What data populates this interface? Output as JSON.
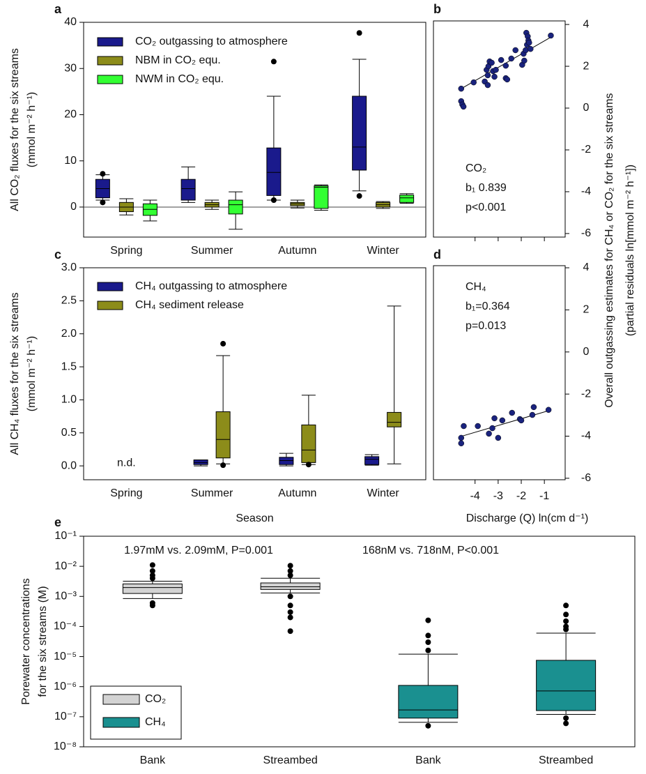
{
  "chart_data": [
    {
      "panel_label": "a",
      "type": "box",
      "ylabel": [
        "All CO₂ fluxes for the six streams",
        "(mmol m⁻² h⁻¹)"
      ],
      "categories": [
        "Spring",
        "Summer",
        "Autumn",
        "Winter"
      ],
      "ylim": [
        -6.5,
        40
      ],
      "yticks": [
        0,
        10,
        20,
        30,
        40
      ],
      "reference_line": 0,
      "legend": "upper left",
      "series": [
        {
          "name": "CO₂ outgassing to atmosphere",
          "color": "#1a1a8c",
          "whislo": [
            1.5,
            1,
            1.5,
            3.5
          ],
          "q1": [
            2,
            1.5,
            2.5,
            8
          ],
          "med": [
            4,
            4,
            7.5,
            13
          ],
          "q3": [
            6,
            6,
            12.8,
            24
          ],
          "whishi": [
            7,
            8.7,
            24,
            32
          ],
          "fliers": [
            [
              7.2,
              1.0
            ],
            [],
            [
              31.5,
              1.5
            ],
            [
              37.7,
              2.4
            ]
          ]
        },
        {
          "name": "NBM in CO₂ equ.",
          "color": "#8c8c1a",
          "whislo": [
            -1.7,
            -0.5,
            -0.2,
            -0.3
          ],
          "q1": [
            -1,
            0,
            0.3,
            0
          ],
          "med": [
            0,
            0.5,
            0.7,
            0.5
          ],
          "q3": [
            1,
            1,
            1,
            1
          ],
          "whishi": [
            1.8,
            1.5,
            1.5,
            1.2
          ],
          "fliers": [
            [],
            [],
            [],
            []
          ]
        },
        {
          "name": "NWM in CO₂ equ.",
          "color": "#33ff33",
          "whislo": [
            -3,
            -4.8,
            -0.7,
            0.8
          ],
          "q1": [
            -1.8,
            -1.5,
            -0.3,
            1
          ],
          "med": [
            -0.5,
            0.5,
            4.3,
            2
          ],
          "q3": [
            0.7,
            1.5,
            4.6,
            2.6
          ],
          "whishi": [
            1.5,
            3.3,
            4.8,
            2.9
          ],
          "fliers": [
            [],
            [],
            [],
            []
          ]
        }
      ]
    },
    {
      "panel_label": "b",
      "type": "scatter",
      "yaxis_side": "right",
      "color": "#1a237e",
      "ylabel": [
        "Overall outgassing estimates for CH₄ or CO₂ for the six streams",
        "(partial residuals ln[mmol m⁻² h⁻¹])"
      ],
      "xlim": [
        -5.8,
        -0.1
      ],
      "ylim": [
        -6.17,
        4.17
      ],
      "yticks": [
        -6,
        -4,
        -2,
        0,
        2,
        4
      ],
      "x": [
        -4.6,
        -4.6,
        -4.55,
        -4.5,
        -4.06,
        -3.58,
        -3.5,
        -3.45,
        -3.45,
        -3.42,
        -3.37,
        -3.28,
        -3.22,
        -3.1,
        -3.16,
        -2.87,
        -2.67,
        -2.67,
        -2.61,
        -2.43,
        -2.25,
        -1.96,
        -1.87,
        -1.9,
        -1.81,
        -1.75,
        -1.78,
        -1.72,
        -1.69,
        -1.66,
        -1.6,
        -0.72
      ],
      "y": [
        0.93,
        0.33,
        0.17,
        0.07,
        1.23,
        1.27,
        1.83,
        1.57,
        1.1,
        2.0,
        2.23,
        2.17,
        1.77,
        1.83,
        1.5,
        2.3,
        2.03,
        1.43,
        1.37,
        2.37,
        2.77,
        2.07,
        2.27,
        2.6,
        2.77,
        3.03,
        3.6,
        3.43,
        3.23,
        3.13,
        2.83,
        3.47
      ],
      "fit_x": [
        -4.6,
        -0.66
      ],
      "fit_y": [
        0.93,
        3.43
      ],
      "annotations": [
        "CO₂",
        "b₁ 0.839",
        "p<0.001"
      ]
    },
    {
      "panel_label": "c",
      "type": "box",
      "ylabel": [
        "All CH₄ fluxes for the six streams",
        "(mmol m⁻² h⁻¹)"
      ],
      "xlabel": "Season",
      "categories": [
        "Spring",
        "Summer",
        "Autumn",
        "Winter"
      ],
      "ylim": [
        -0.21,
        3.0
      ],
      "yticks": [
        {
          "value": 0,
          "label": "0.0"
        },
        {
          "value": 0.5,
          "label": "0.5"
        },
        {
          "value": 1,
          "label": "1.0"
        },
        {
          "value": 1.5,
          "label": "1.5"
        },
        {
          "value": 2,
          "label": "2.0"
        },
        {
          "value": 2.5,
          "label": "2.5"
        },
        {
          "value": 3,
          "label": "3.0"
        }
      ],
      "legend": "upper left",
      "notes": [
        "n.d."
      ],
      "series": [
        {
          "name": "CH₄ outgassing to atmosphere",
          "color": "#1a1a8c",
          "whislo": [
            null,
            0,
            0,
            0.01
          ],
          "q1": [
            null,
            0.02,
            0.02,
            0.02
          ],
          "med": [
            null,
            0.05,
            0.08,
            0.1
          ],
          "q3": [
            null,
            0.09,
            0.13,
            0.14
          ],
          "whishi": [
            null,
            0.09,
            0.19,
            0.17
          ],
          "fliers": [
            [],
            [],
            [],
            []
          ]
        },
        {
          "name": "CH₄ sediment release",
          "color": "#8c8c1a",
          "whislo": [
            null,
            0.03,
            0.02,
            0.03
          ],
          "q1": [
            null,
            0.12,
            0.05,
            0.59
          ],
          "med": [
            null,
            0.4,
            0.24,
            0.66
          ],
          "q3": [
            null,
            0.82,
            0.62,
            0.81
          ],
          "whishi": [
            null,
            1.67,
            1.07,
            2.42
          ],
          "fliers": [
            [],
            [
              1.85,
              0.01
            ],
            [
              0.02
            ],
            []
          ]
        }
      ]
    },
    {
      "panel_label": "d",
      "type": "scatter",
      "yaxis_side": "right",
      "color": "#1a237e",
      "xlabel": "Discharge (Q) ln(cm d⁻¹)",
      "xlim": [
        -5.8,
        -0.1
      ],
      "xticks": [
        -4,
        -3,
        -2,
        -1
      ],
      "ylim": [
        -6.07,
        4.1
      ],
      "yticks": [
        -6,
        -4,
        -2,
        0,
        2,
        4
      ],
      "x": [
        -4.6,
        -4.6,
        -4.49,
        -3.88,
        -3.25,
        -3.16,
        -3.4,
        -3.0,
        -2.82,
        -2.4,
        -2.06,
        -2.0,
        -1.52,
        -1.46,
        -0.82
      ],
      "y": [
        -4.08,
        -4.34,
        -3.52,
        -3.52,
        -3.62,
        -3.15,
        -3.88,
        -4.08,
        -3.25,
        -2.89,
        -3.19,
        -3.25,
        -2.99,
        -2.62,
        -2.75
      ],
      "fit_x": [
        -4.6,
        -0.82
      ],
      "fit_y": [
        -4.01,
        -2.79
      ],
      "annotations": [
        "CH₄",
        "b₁=0.364",
        "p=0.013"
      ]
    },
    {
      "panel_label": "e",
      "type": "box",
      "log": true,
      "ylabel": [
        "Porewater concentrations",
        "for the six streams (M)"
      ],
      "categories": [
        "Bank",
        "Streambed",
        "Bank",
        "Streambed"
      ],
      "ylim": [
        1e-08,
        0.1
      ],
      "yticks": [
        {
          "value": 1e-08,
          "label": "10⁻⁸"
        },
        {
          "value": 1e-07,
          "label": "10⁻⁷"
        },
        {
          "value": 1e-06,
          "label": "10⁻⁶"
        },
        {
          "value": 1e-05,
          "label": "10⁻⁵"
        },
        {
          "value": 0.0001,
          "label": "10⁻⁴"
        },
        {
          "value": 0.001,
          "label": "10⁻³"
        },
        {
          "value": 0.01,
          "label": "10⁻²"
        },
        {
          "value": 0.1,
          "label": "10⁻¹"
        }
      ],
      "legend": "lower left",
      "annotations": [
        "1.97mM vs. 2.09mM, P=0.001",
        "168nM vs. 718nM, P<0.001"
      ],
      "annotation_colors": [
        "#8c8c8c",
        "#1a9090"
      ],
      "series": [
        {
          "name": "CO₂",
          "color": "#d3d3d3",
          "whislo": [
            0.00085,
            0.0013,
            null,
            null
          ],
          "q1": [
            0.00125,
            0.0017,
            null,
            null
          ],
          "med": [
            0.00197,
            0.00209,
            null,
            null
          ],
          "q3": [
            0.0026,
            0.0028,
            null,
            null
          ],
          "whishi": [
            0.0032,
            0.004,
            null,
            null
          ],
          "fliers": [
            [
              0.004,
              0.005,
              0.007,
              0.011,
              0.0006,
              0.0005
            ],
            [
              0.005,
              0.007,
              0.0105,
              0.001,
              0.0005,
              0.0003,
              0.0002,
              7e-05
            ],
            [],
            []
          ]
        },
        {
          "name": "CH₄",
          "color": "#1a9090",
          "whislo": [
            null,
            null,
            6.5e-08,
            1.2e-07
          ],
          "q1": [
            null,
            null,
            9e-08,
            1.6e-07
          ],
          "med": [
            null,
            null,
            1.68e-07,
            7.18e-07
          ],
          "q3": [
            null,
            null,
            1.1e-06,
            7.5e-06
          ],
          "whishi": [
            null,
            null,
            1.2e-05,
            6e-05
          ],
          "fliers": [
            [],
            [],
            [
              1.6e-05,
              3e-05,
              5e-05,
              0.00016,
              5e-08
            ],
            [
              8e-05,
              0.0001,
              0.00015,
              0.00025,
              0.0005,
              9e-08,
              6e-08
            ]
          ]
        }
      ]
    }
  ]
}
